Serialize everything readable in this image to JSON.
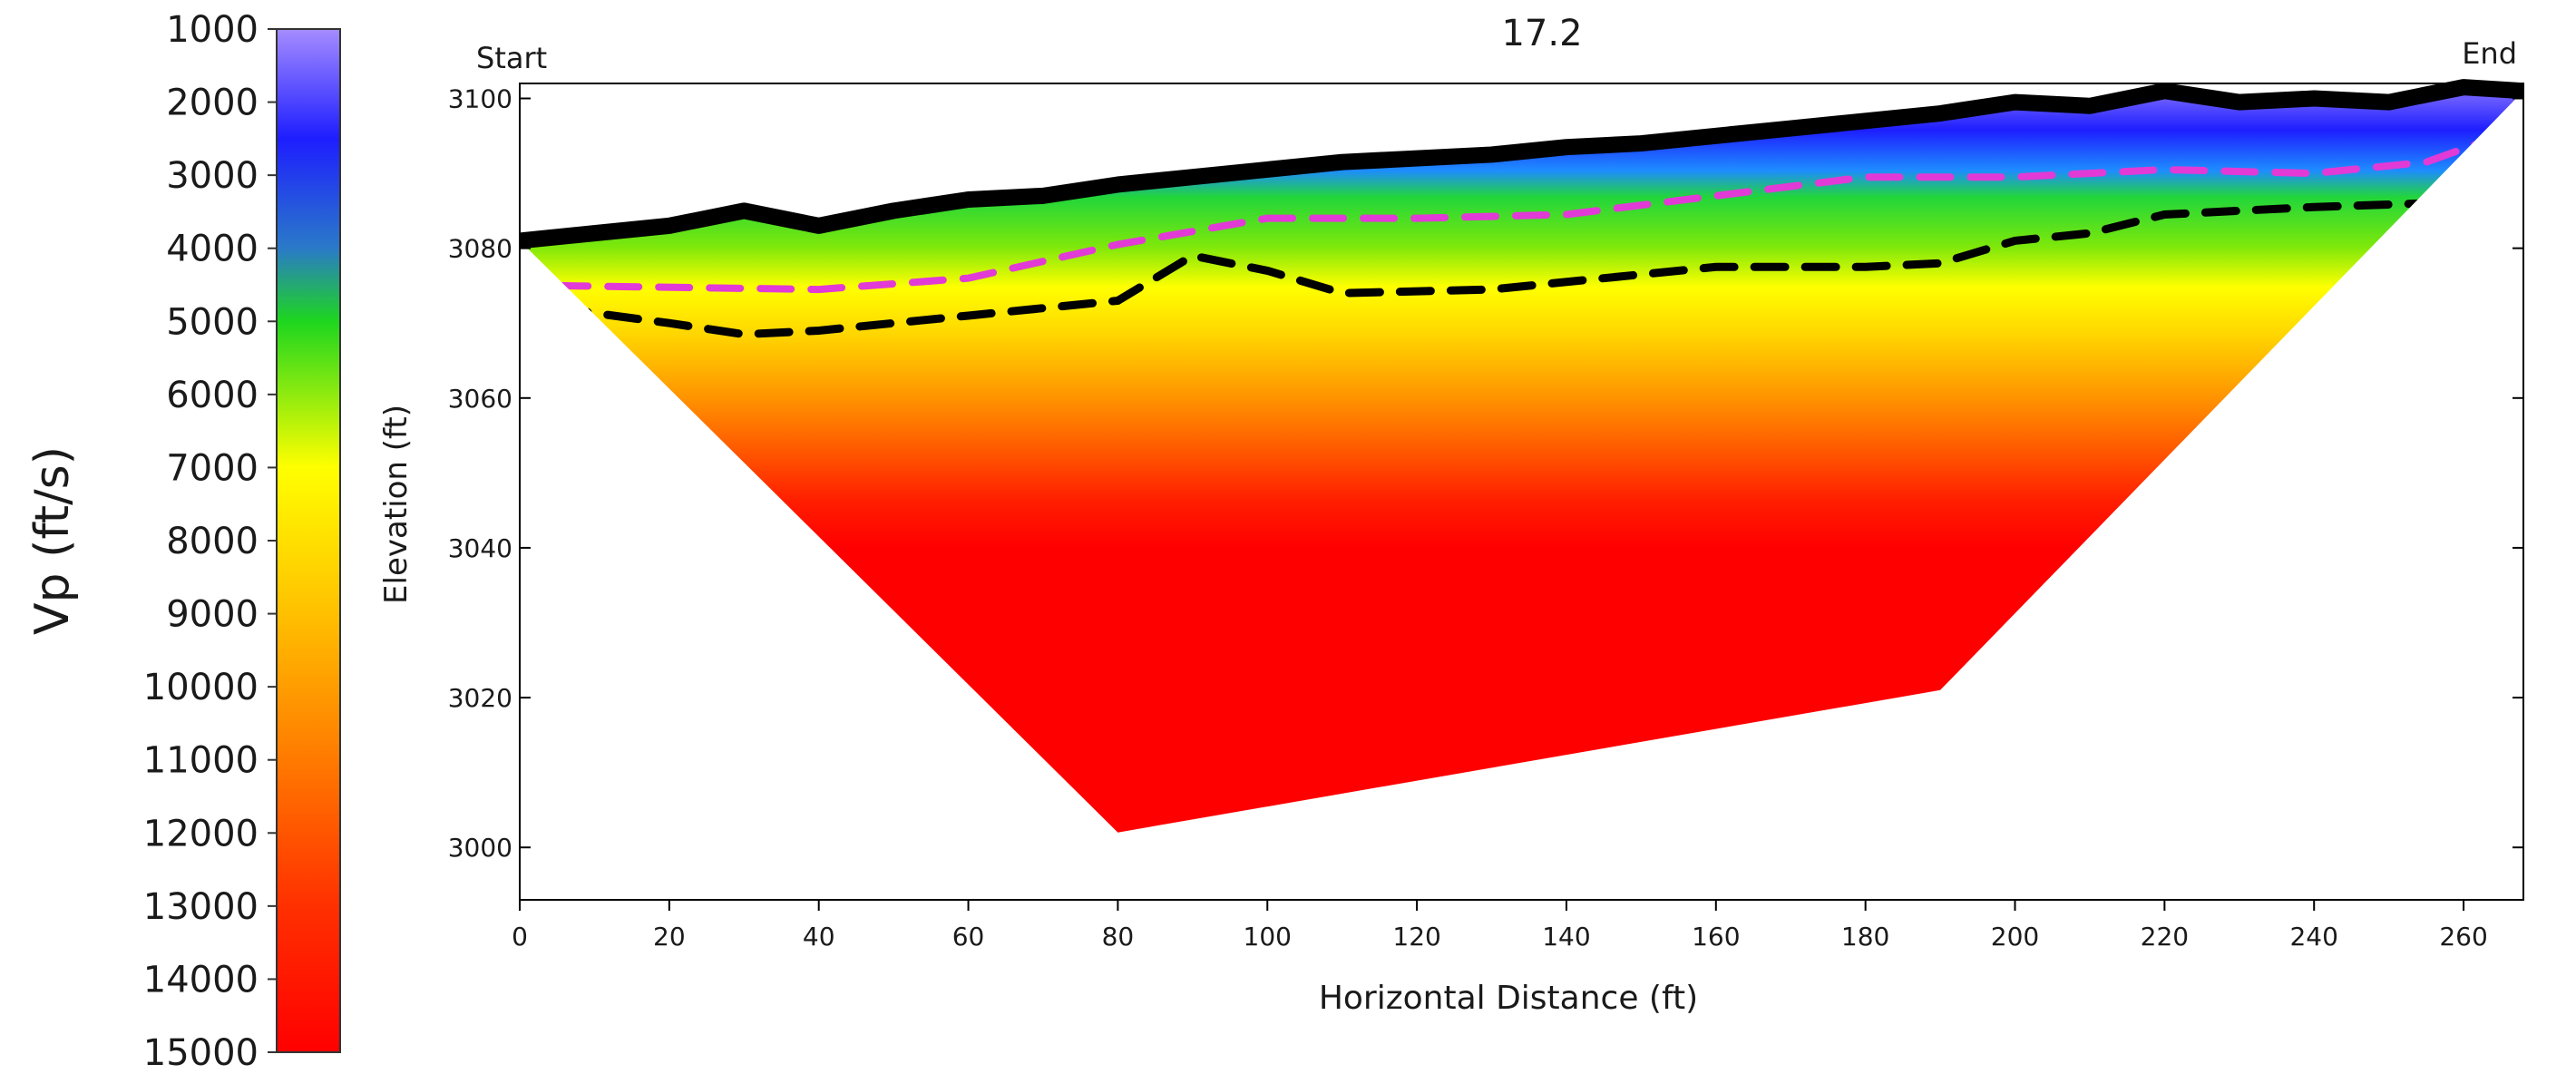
{
  "chart_data": {
    "type": "heatmap",
    "title": "17.2",
    "start_label": "Start",
    "end_label": "End",
    "xlabel": "Horizontal Distance (ft)",
    "ylabel": "Elevation (ft)",
    "xlim": [
      0,
      268
    ],
    "ylim": [
      2993,
      3102
    ],
    "x_ticks": [
      0,
      20,
      40,
      60,
      80,
      100,
      120,
      140,
      160,
      180,
      200,
      220,
      240,
      260
    ],
    "y_ticks": [
      3000,
      3020,
      3040,
      3060,
      3080,
      3100
    ],
    "grid": false,
    "colorbar": {
      "label": "Vp (ft/s)",
      "min": 1000,
      "max": 15000,
      "ticks": [
        1000,
        2000,
        3000,
        4000,
        5000,
        6000,
        7000,
        8000,
        9000,
        10000,
        11000,
        12000,
        13000,
        14000,
        15000
      ],
      "colors": [
        {
          "value": 1000,
          "color": "#a58cff"
        },
        {
          "value": 2500,
          "color": "#1e1eff"
        },
        {
          "value": 4000,
          "color": "#2a7ac8"
        },
        {
          "value": 5000,
          "color": "#1ed61e"
        },
        {
          "value": 7000,
          "color": "#ffff00"
        },
        {
          "value": 9000,
          "color": "#ffc000"
        },
        {
          "value": 11000,
          "color": "#ff7a00"
        },
        {
          "value": 13000,
          "color": "#ff3000"
        },
        {
          "value": 15000,
          "color": "#ff0000"
        }
      ]
    },
    "surface": {
      "x": [
        0,
        10,
        20,
        30,
        40,
        50,
        60,
        70,
        80,
        90,
        100,
        110,
        120,
        130,
        140,
        150,
        160,
        170,
        180,
        190,
        200,
        210,
        220,
        230,
        240,
        250,
        260,
        268
      ],
      "y": [
        3081,
        3082,
        3083,
        3085,
        3083,
        3085,
        3086.5,
        3087,
        3088.5,
        3089.5,
        3090.5,
        3091.5,
        3092,
        3092.5,
        3093.5,
        3094,
        3095,
        3096,
        3097,
        3098,
        3099.5,
        3099,
        3101,
        3099.5,
        3100,
        3099.5,
        3101.5,
        3101
      ]
    },
    "model_bottom": {
      "x": [
        0,
        80,
        190,
        268
      ],
      "y": [
        3081,
        3002,
        3021,
        3101
      ]
    },
    "boundaries": [
      {
        "color": "#e23ad6",
        "x": [
          5,
          40,
          60,
          80,
          100,
          120,
          140,
          160,
          180,
          200,
          220,
          240,
          255,
          262
        ],
        "y": [
          3075,
          3074.5,
          3076,
          3080.5,
          3084,
          3084,
          3084.5,
          3087,
          3089.5,
          3089.5,
          3090.5,
          3090,
          3091.5,
          3094
        ]
      },
      {
        "color": "#000000",
        "x": [
          5,
          20,
          30,
          40,
          60,
          80,
          90,
          100,
          110,
          130,
          150,
          160,
          180,
          190,
          200,
          210,
          220,
          240,
          255
        ],
        "y": [
          3072,
          3070,
          3068.5,
          3069,
          3071,
          3073,
          3079,
          3077,
          3074,
          3074.5,
          3076.5,
          3077.5,
          3077.5,
          3078,
          3081,
          3082,
          3084.5,
          3085.5,
          3086
        ]
      }
    ]
  }
}
